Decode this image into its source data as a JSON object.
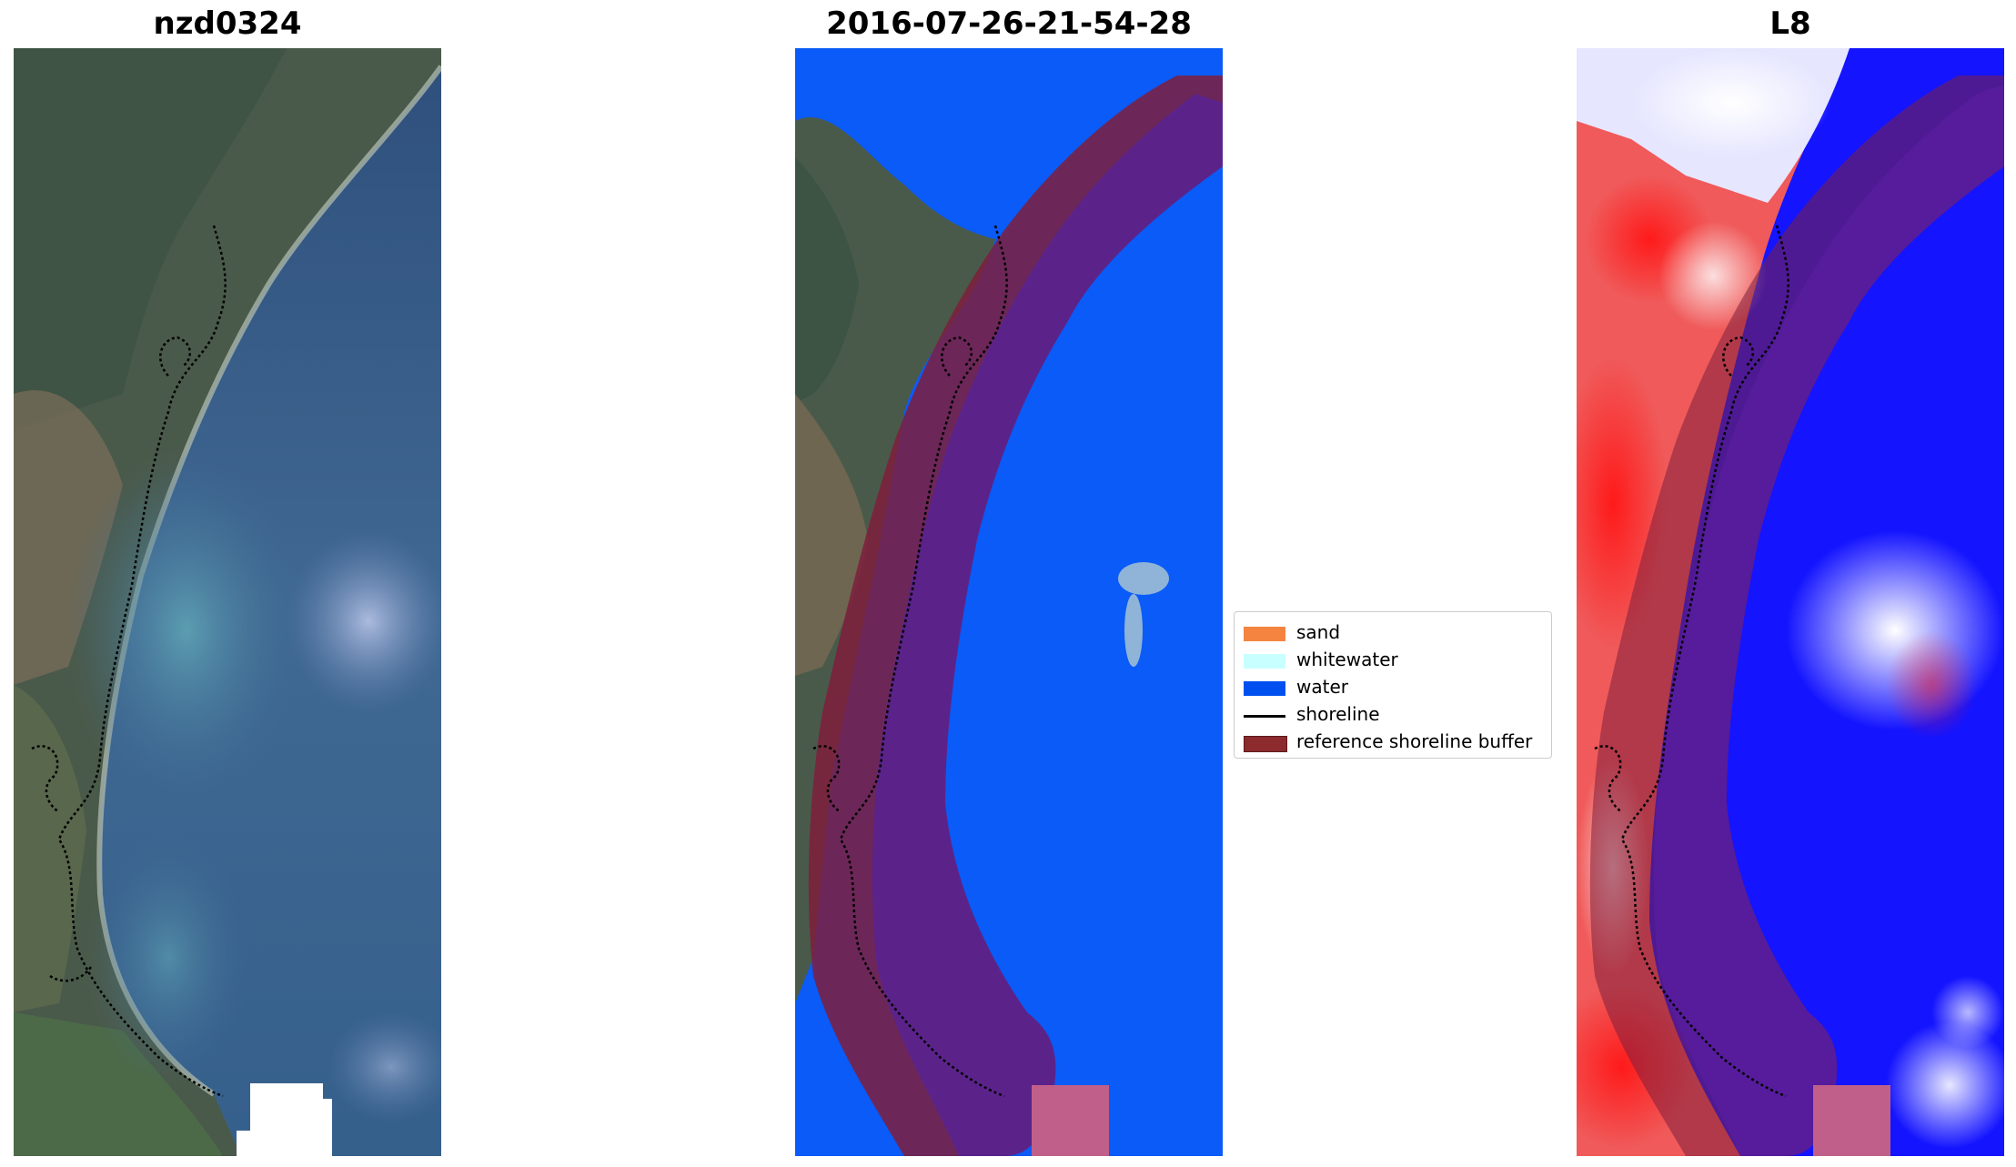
{
  "panels": [
    {
      "title": "nzd0324"
    },
    {
      "title": "2016-07-26-21-54-28"
    },
    {
      "title": "L8"
    }
  ],
  "legend": {
    "items": [
      {
        "label": "sand",
        "color": "#f48440"
      },
      {
        "label": "whitewater",
        "color": "#c8ffff"
      },
      {
        "label": "water",
        "color": "#0050f0"
      },
      {
        "label": "shoreline",
        "color": "#000000"
      },
      {
        "label": "reference shoreline buffer",
        "color": "#8c2a2e"
      }
    ]
  },
  "colors": {
    "ocean": "#3e6294",
    "classified_water": "#0a5bf7",
    "buffer": "#8c2a2e",
    "index_red": "#ff2020",
    "index_blue": "#1a1aff"
  }
}
